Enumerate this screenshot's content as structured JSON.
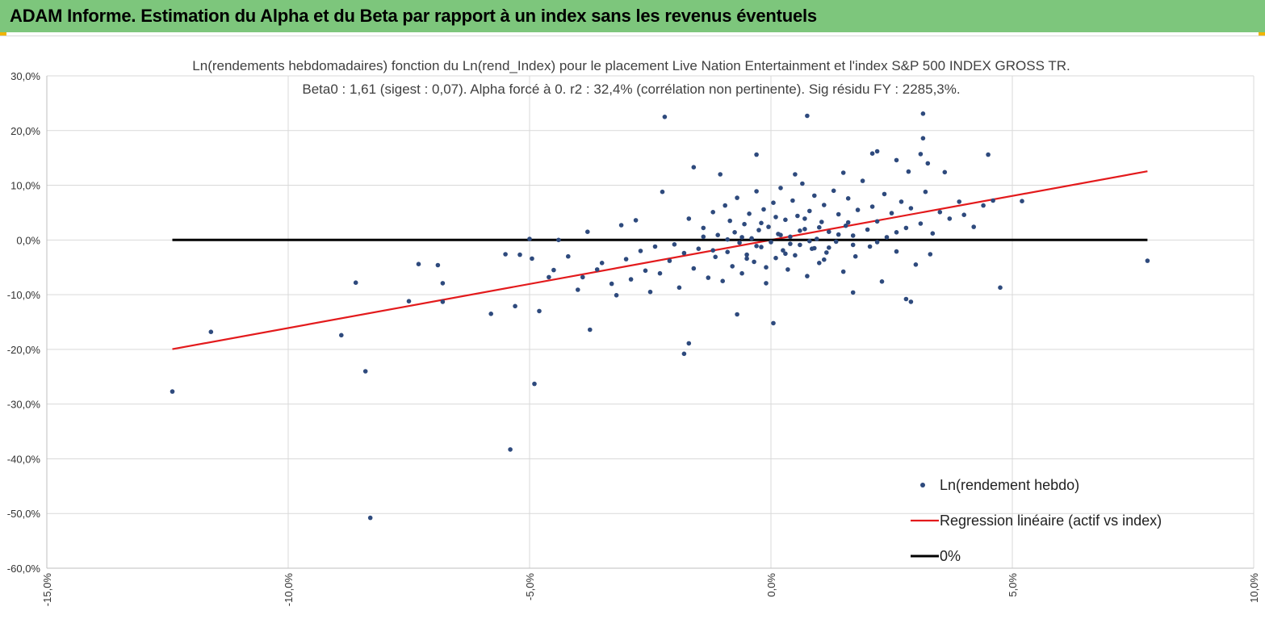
{
  "header": {
    "title": "ADAM Informe. Estimation du Alpha et du Beta par rapport à un index sans les revenus éventuels",
    "background": "#7dc67c",
    "corner_color": "#f0b400"
  },
  "chart_data": {
    "type": "scatter",
    "title": "Ln(rendements hebdomadaires) fonction du Ln(rend_Index) pour le placement Live Nation Entertainment et l'index S&P 500 INDEX GROSS TR.",
    "subtitle": "Beta0 : 1,61 (sigest : 0,07). Alpha forcé à 0. r2 : 32,4% (corrélation non pertinente). Sig résidu FY : 2285,3%.",
    "xlabel": "",
    "ylabel": "",
    "xlim": [
      -15,
      10
    ],
    "ylim": [
      -60,
      30
    ],
    "x_ticks": [
      -15,
      -10,
      -5,
      0,
      5,
      10
    ],
    "y_ticks": [
      30,
      20,
      10,
      0,
      -10,
      -20,
      -30,
      -40,
      -50,
      -60
    ],
    "x_tick_labels": [
      "-15,0%",
      "-10,0%",
      "-5,0%",
      "0,0%",
      "5,0%",
      "10,0%"
    ],
    "y_tick_labels": [
      "30,0%",
      "20,0%",
      "10,0%",
      "0,0%",
      "-10,0%",
      "-20,0%",
      "-30,0%",
      "-40,0%",
      "-50,0%",
      "-60,0%"
    ],
    "grid": true,
    "legend_position": "bottom-right",
    "series": [
      {
        "name": "Ln(rendement hebdo)",
        "kind": "scatter",
        "color": "#2e4a7d",
        "points": [
          [
            -12.4,
            -27.7
          ],
          [
            -11.6,
            -16.8
          ],
          [
            -8.9,
            -17.4
          ],
          [
            -8.6,
            -7.8
          ],
          [
            -8.4,
            -24.0
          ],
          [
            -8.3,
            -50.8
          ],
          [
            -7.5,
            -11.2
          ],
          [
            -7.3,
            -4.4
          ],
          [
            -6.9,
            -4.6
          ],
          [
            -6.8,
            -7.9
          ],
          [
            -6.8,
            -11.3
          ],
          [
            -5.8,
            -13.5
          ],
          [
            -5.5,
            -2.6
          ],
          [
            -5.4,
            -38.3
          ],
          [
            -5.3,
            -12.1
          ],
          [
            -5.2,
            -2.7
          ],
          [
            -5.0,
            0.2
          ],
          [
            -4.95,
            -3.4
          ],
          [
            -4.9,
            -26.3
          ],
          [
            -4.8,
            -13.0
          ],
          [
            -4.6,
            -6.8
          ],
          [
            -4.4,
            0.0
          ],
          [
            -4.0,
            -9.1
          ],
          [
            -3.8,
            1.5
          ],
          [
            -3.75,
            -16.4
          ],
          [
            -3.6,
            -5.4
          ],
          [
            -3.2,
            -10.1
          ],
          [
            -3.1,
            2.7
          ],
          [
            -2.8,
            3.6
          ],
          [
            -2.2,
            22.5
          ],
          [
            -2.25,
            8.8
          ],
          [
            -1.8,
            -20.8
          ],
          [
            -1.7,
            -18.9
          ],
          [
            -1.6,
            13.3
          ],
          [
            -1.05,
            12.0
          ],
          [
            -0.7,
            -13.6
          ],
          [
            -0.3,
            15.6
          ],
          [
            0.05,
            -15.2
          ],
          [
            0.5,
            12.0
          ],
          [
            0.75,
            22.7
          ],
          [
            1.5,
            12.3
          ],
          [
            1.7,
            -9.6
          ],
          [
            2.1,
            15.8
          ],
          [
            2.2,
            16.2
          ],
          [
            2.6,
            14.6
          ],
          [
            2.85,
            12.5
          ],
          [
            2.8,
            -10.8
          ],
          [
            2.9,
            -11.3
          ],
          [
            3.15,
            23.1
          ],
          [
            3.15,
            18.6
          ],
          [
            3.1,
            15.7
          ],
          [
            3.25,
            14.0
          ],
          [
            3.3,
            -2.6
          ],
          [
            3.6,
            12.4
          ],
          [
            4.5,
            15.6
          ],
          [
            4.75,
            -8.7
          ],
          [
            5.2,
            7.1
          ],
          [
            7.8,
            -3.8
          ],
          [
            -4.5,
            -5.5
          ],
          [
            -4.2,
            -3.0
          ],
          [
            -3.9,
            -6.8
          ],
          [
            -3.5,
            -4.2
          ],
          [
            -3.3,
            -8.0
          ],
          [
            -3.0,
            -3.5
          ],
          [
            -2.9,
            -7.2
          ],
          [
            -2.7,
            -2.0
          ],
          [
            -2.6,
            -5.6
          ],
          [
            -2.5,
            -9.5
          ],
          [
            -2.4,
            -1.2
          ],
          [
            -2.3,
            -6.1
          ],
          [
            -2.1,
            -3.8
          ],
          [
            -2.0,
            -0.8
          ],
          [
            -1.9,
            -8.7
          ],
          [
            -1.8,
            -2.4
          ],
          [
            -1.7,
            3.9
          ],
          [
            -1.6,
            -5.2
          ],
          [
            -1.5,
            -1.6
          ],
          [
            -1.4,
            2.2
          ],
          [
            -1.3,
            -6.9
          ],
          [
            -1.2,
            5.1
          ],
          [
            -1.15,
            -3.1
          ],
          [
            -1.1,
            0.9
          ],
          [
            -1.0,
            -7.5
          ],
          [
            -0.95,
            6.3
          ],
          [
            -0.9,
            -2.2
          ],
          [
            -0.85,
            3.5
          ],
          [
            -0.8,
            -4.8
          ],
          [
            -0.75,
            1.4
          ],
          [
            -0.7,
            7.7
          ],
          [
            -0.65,
            -0.5
          ],
          [
            -0.6,
            -6.1
          ],
          [
            -0.55,
            2.9
          ],
          [
            -0.5,
            -2.7
          ],
          [
            -0.45,
            4.8
          ],
          [
            -0.4,
            0.3
          ],
          [
            -0.35,
            -4.0
          ],
          [
            -0.3,
            8.9
          ],
          [
            -0.25,
            1.8
          ],
          [
            -0.2,
            -1.3
          ],
          [
            -0.15,
            5.6
          ],
          [
            -0.1,
            -7.9
          ],
          [
            -0.05,
            2.4
          ],
          [
            0.0,
            -0.4
          ],
          [
            0.05,
            6.8
          ],
          [
            0.1,
            -3.3
          ],
          [
            0.15,
            1.1
          ],
          [
            0.2,
            9.5
          ],
          [
            0.25,
            -1.9
          ],
          [
            0.3,
            3.7
          ],
          [
            0.35,
            -5.4
          ],
          [
            0.4,
            0.6
          ],
          [
            0.45,
            7.2
          ],
          [
            0.5,
            -2.8
          ],
          [
            0.55,
            4.4
          ],
          [
            0.6,
            -0.9
          ],
          [
            0.65,
            10.3
          ],
          [
            0.7,
            2.0
          ],
          [
            0.75,
            -6.6
          ],
          [
            0.8,
            5.3
          ],
          [
            0.85,
            -1.6
          ],
          [
            0.9,
            8.1
          ],
          [
            0.95,
            0.2
          ],
          [
            1.0,
            -4.2
          ],
          [
            1.05,
            3.3
          ],
          [
            1.1,
            6.4
          ],
          [
            1.15,
            -2.3
          ],
          [
            1.2,
            1.5
          ],
          [
            1.3,
            9.0
          ],
          [
            1.35,
            -0.3
          ],
          [
            1.4,
            4.7
          ],
          [
            1.5,
            -5.8
          ],
          [
            1.55,
            2.6
          ],
          [
            1.6,
            7.6
          ],
          [
            1.7,
            0.8
          ],
          [
            1.75,
            -3.0
          ],
          [
            1.8,
            5.5
          ],
          [
            1.9,
            10.8
          ],
          [
            2.0,
            1.9
          ],
          [
            2.05,
            -1.2
          ],
          [
            2.1,
            6.1
          ],
          [
            2.2,
            3.4
          ],
          [
            2.3,
            -7.6
          ],
          [
            2.35,
            8.4
          ],
          [
            2.4,
            0.5
          ],
          [
            2.5,
            4.9
          ],
          [
            2.6,
            -2.1
          ],
          [
            2.7,
            7.0
          ],
          [
            2.8,
            2.2
          ],
          [
            2.9,
            5.8
          ],
          [
            3.0,
            -4.5
          ],
          [
            3.1,
            3.0
          ],
          [
            3.2,
            8.8
          ],
          [
            3.35,
            1.2
          ],
          [
            3.5,
            5.1
          ],
          [
            3.7,
            3.9
          ],
          [
            3.9,
            7.0
          ],
          [
            4.0,
            4.6
          ],
          [
            4.2,
            2.4
          ],
          [
            4.4,
            6.3
          ],
          [
            4.6,
            7.2
          ],
          [
            -0.6,
            0.5
          ],
          [
            -0.3,
            -1.1
          ],
          [
            0.2,
            0.9
          ],
          [
            0.4,
            -0.7
          ],
          [
            0.6,
            1.7
          ],
          [
            0.8,
            -0.2
          ],
          [
            1.0,
            2.3
          ],
          [
            1.2,
            -1.4
          ],
          [
            -0.5,
            -3.4
          ],
          [
            -0.2,
            3.1
          ],
          [
            0.3,
            -2.5
          ],
          [
            0.7,
            3.9
          ],
          [
            1.1,
            -3.6
          ],
          [
            1.4,
            1.0
          ],
          [
            1.7,
            -0.9
          ],
          [
            -0.9,
            0.1
          ],
          [
            -1.2,
            -1.9
          ],
          [
            0.1,
            4.2
          ],
          [
            0.9,
            -1.5
          ],
          [
            1.6,
            3.2
          ],
          [
            2.2,
            -0.4
          ],
          [
            2.6,
            1.4
          ],
          [
            -1.4,
            0.6
          ],
          [
            -0.1,
            -5.0
          ]
        ]
      },
      {
        "name": "Regression linéaire (actif vs index)",
        "kind": "line",
        "color": "#e31a1c",
        "x": [
          -12.4,
          7.8
        ],
        "y": [
          -19.96,
          12.56
        ]
      },
      {
        "name": "0%",
        "kind": "line",
        "color": "#000000",
        "x": [
          -12.4,
          7.8
        ],
        "y": [
          0,
          0
        ]
      }
    ]
  }
}
